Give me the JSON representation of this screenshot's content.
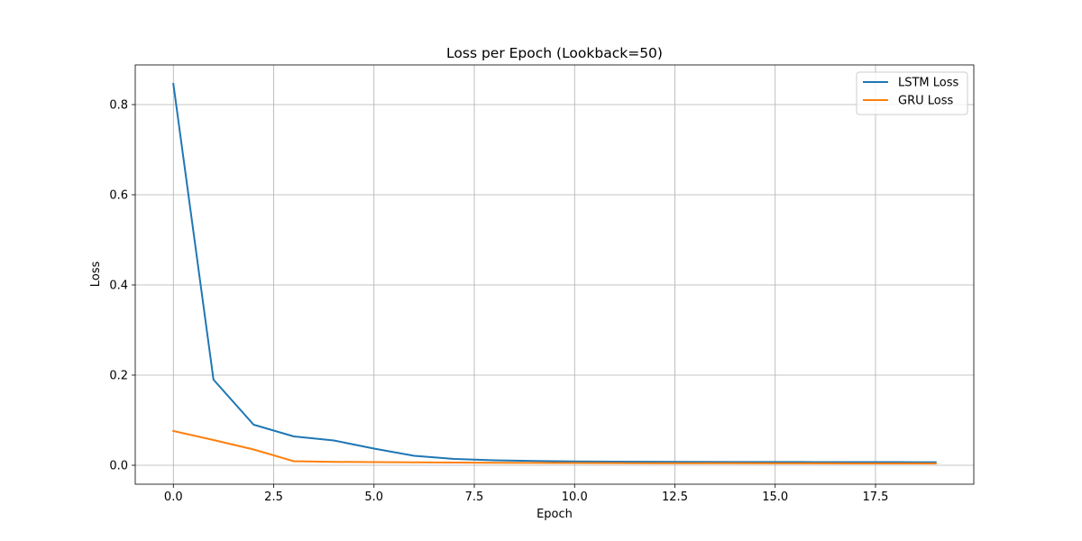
{
  "chart_data": {
    "type": "line",
    "title": "Loss per Epoch (Lookback=50)",
    "xlabel": "Epoch",
    "ylabel": "Loss",
    "xlim": [
      -0.95,
      19.95
    ],
    "ylim": [
      -0.042,
      0.888
    ],
    "xticks": [
      0.0,
      2.5,
      5.0,
      7.5,
      10.0,
      12.5,
      15.0,
      17.5
    ],
    "xtick_labels": [
      "0.0",
      "2.5",
      "5.0",
      "7.5",
      "10.0",
      "12.5",
      "15.0",
      "17.5"
    ],
    "yticks": [
      0.0,
      0.2,
      0.4,
      0.6,
      0.8
    ],
    "ytick_labels": [
      "0.0",
      "0.2",
      "0.4",
      "0.6",
      "0.8"
    ],
    "grid": true,
    "legend_position": "top-right",
    "x": [
      0,
      1,
      2,
      3,
      4,
      5,
      6,
      7,
      8,
      9,
      10,
      11,
      12,
      13,
      14,
      15,
      16,
      17,
      18,
      19
    ],
    "series": [
      {
        "name": "LSTM Loss",
        "color": "#1f77b4",
        "values": [
          0.846,
          0.19,
          0.09,
          0.064,
          0.055,
          0.037,
          0.021,
          0.014,
          0.011,
          0.0095,
          0.0085,
          0.008,
          0.0077,
          0.0075,
          0.0073,
          0.0072,
          0.0071,
          0.007,
          0.0069,
          0.0068
        ]
      },
      {
        "name": "GRU Loss",
        "color": "#ff7f0e",
        "values": [
          0.076,
          0.056,
          0.035,
          0.009,
          0.0075,
          0.007,
          0.0065,
          0.006,
          0.0055,
          0.0052,
          0.005,
          0.0048,
          0.0046,
          0.0045,
          0.0044,
          0.0043,
          0.0042,
          0.0041,
          0.004,
          0.004
        ]
      }
    ]
  }
}
